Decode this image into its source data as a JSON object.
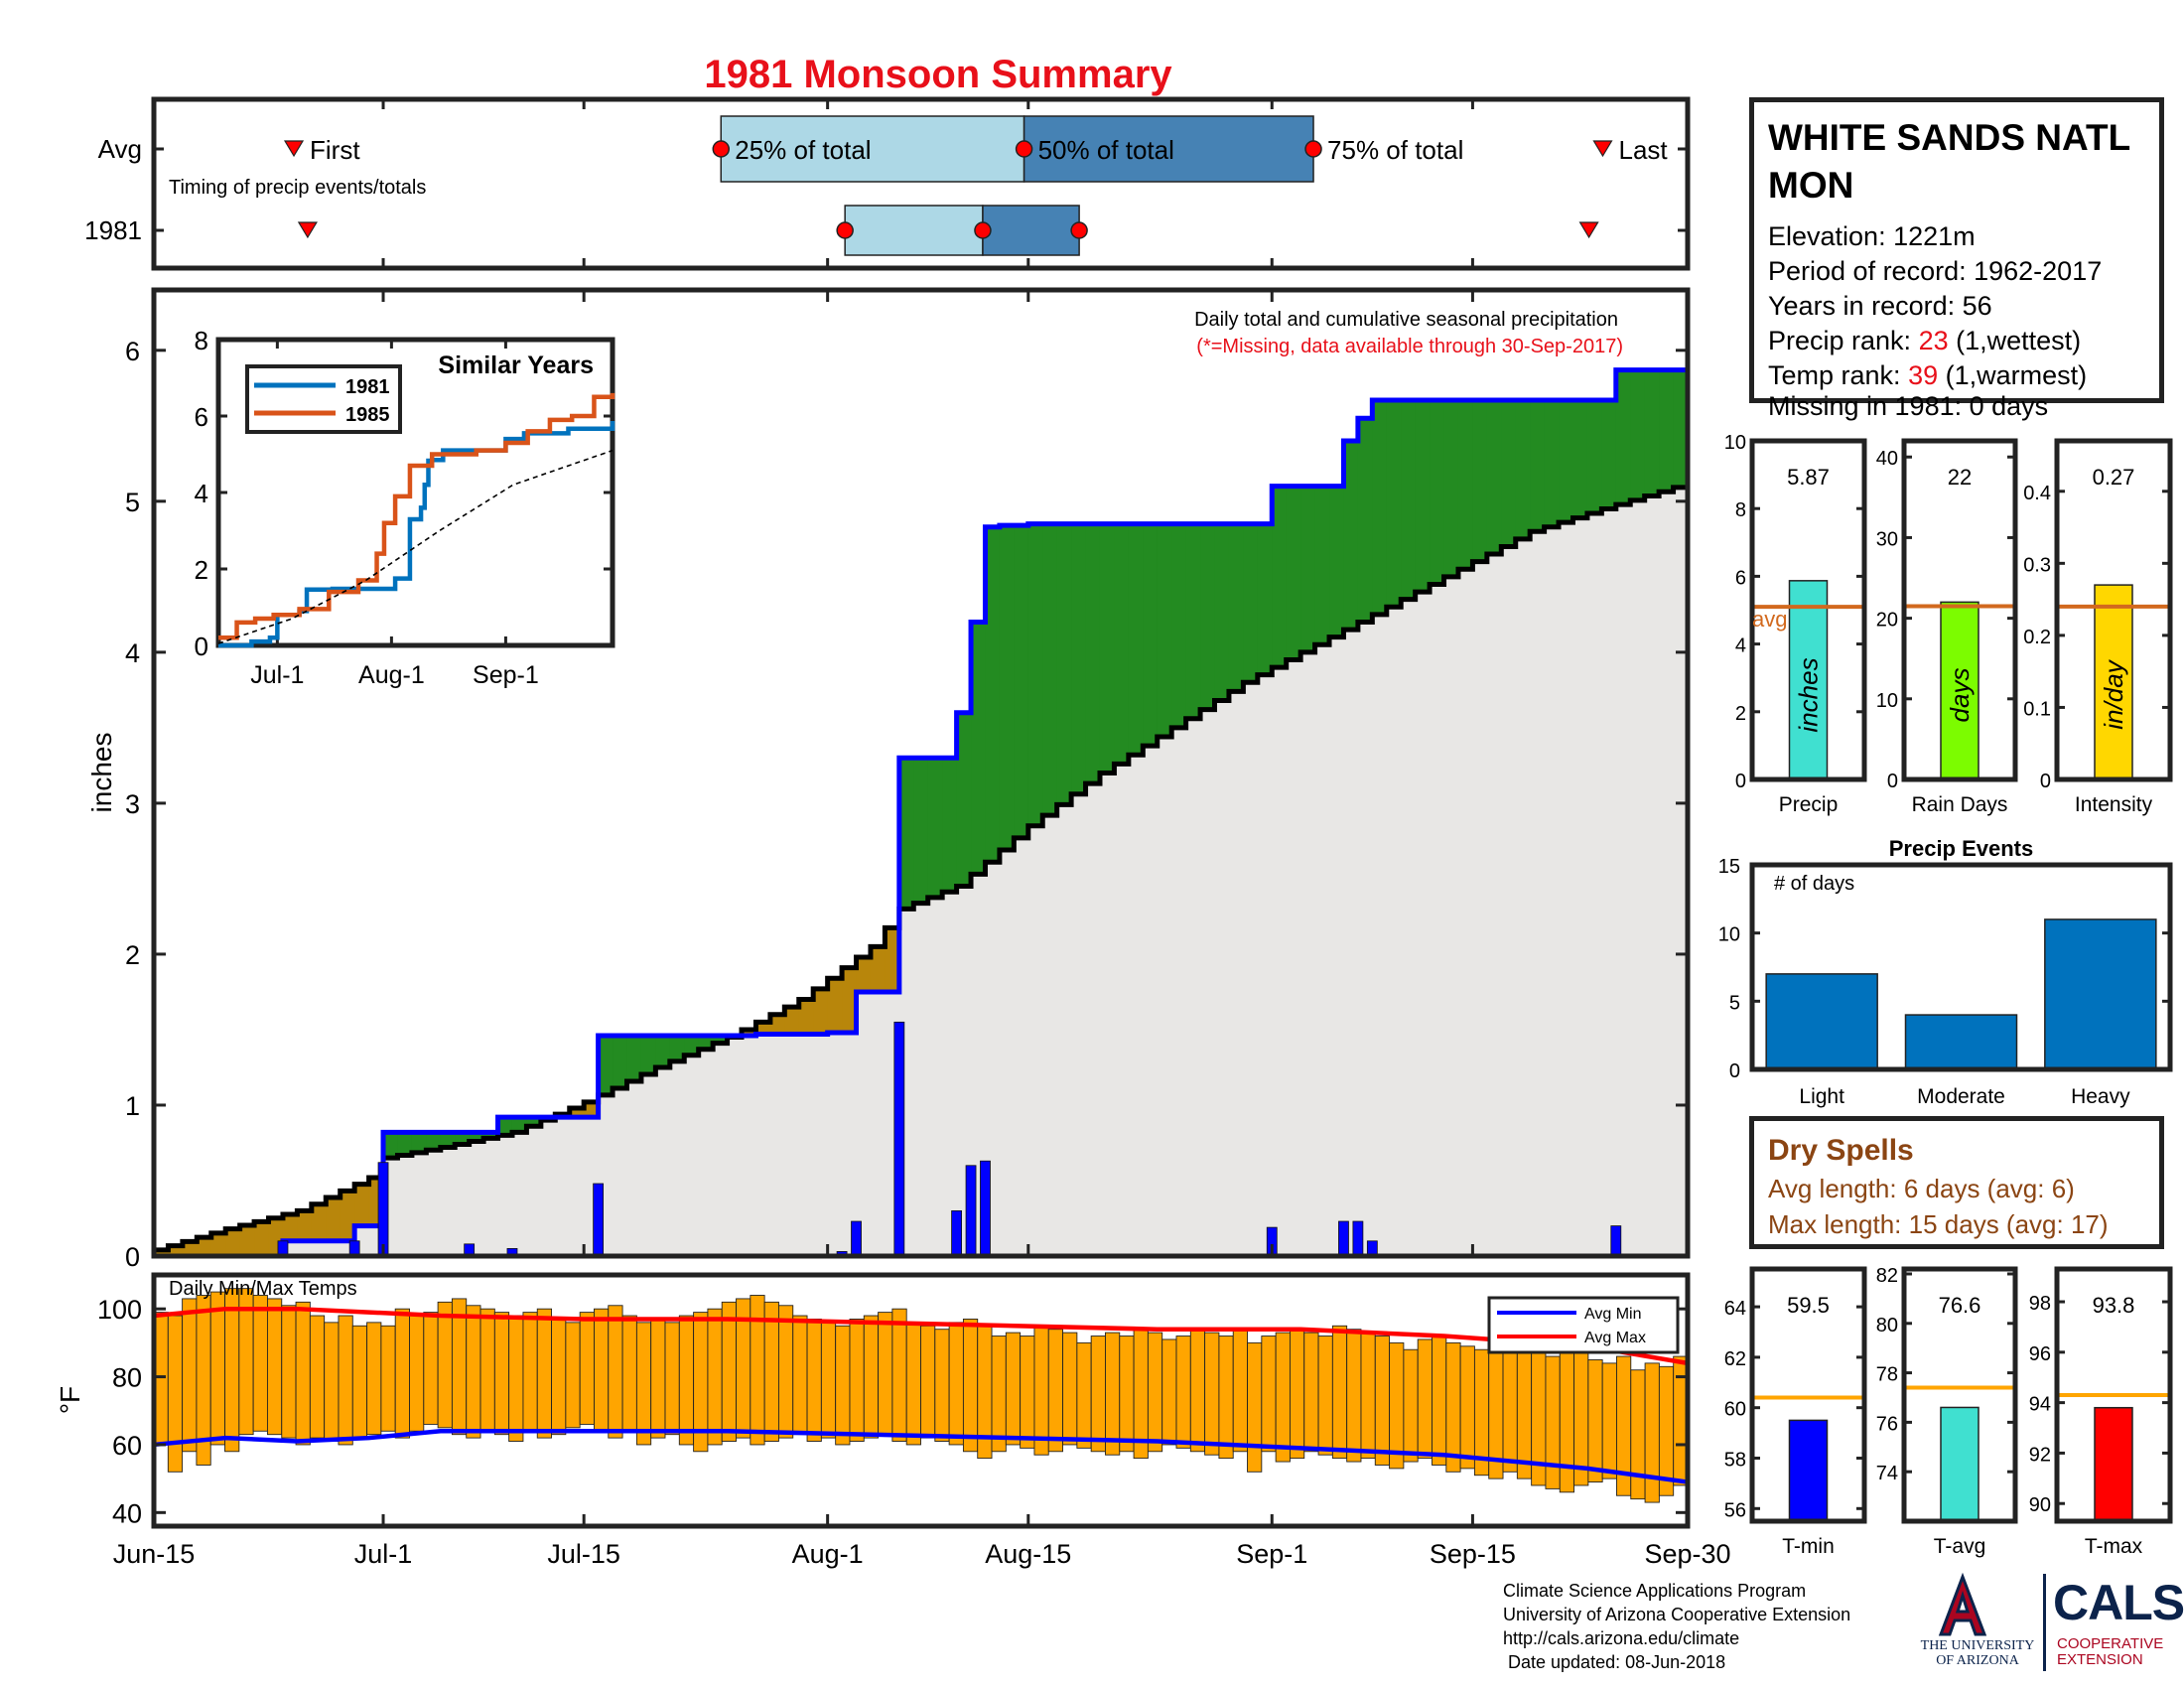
{
  "title": "1981 Monsoon Summary",
  "station": {
    "name": "WHITE SANDS NATL MON",
    "elevation_label": "Elevation: 1221m",
    "period_label": "Period of record: 1962-2017",
    "years_label": "Years in record: 56",
    "precip_rank_prefix": "Precip rank: ",
    "precip_rank": "23",
    "precip_rank_suffix": " (1,wettest)",
    "temp_rank_prefix": "Temp rank: ",
    "temp_rank": "39",
    "temp_rank_suffix": " (1,warmest)",
    "missing_label": "Missing in 1981: 0 days"
  },
  "timing": {
    "rows": [
      "Avg",
      "1981"
    ],
    "subtitle": "Timing of precip events/totals",
    "first_label": "First",
    "last_label": "Last",
    "p25_label": "25% of total",
    "p50_label": "50% of total",
    "p75_label": "75% of total",
    "avg": {
      "first": "2017-06-23",
      "p25": "2017-07-24",
      "p50": "2017-08-15",
      "p75": "2017-09-05",
      "last": "2017-09-26"
    },
    "year": {
      "first": "2017-06-24",
      "p25": "2017-08-02",
      "p50": "2017-08-12",
      "p75": "2017-08-19",
      "last": "2017-09-25"
    }
  },
  "main": {
    "ylabel": "inches",
    "note1": "Daily total and cumulative seasonal precipitation",
    "note2": "(*=Missing, data available through 30-Sep-2017)"
  },
  "inset": {
    "title": "Similar Years",
    "legend": [
      "1981",
      "1985"
    ]
  },
  "temps": {
    "label": "Daily Min/Max Temps",
    "ylabel": "°F",
    "legend": [
      "Avg Min",
      "Avg Max"
    ]
  },
  "bars": {
    "precip": {
      "value": "5.87",
      "unit": "inches",
      "xlabel": "Precip",
      "avg_label": "avg"
    },
    "raindays": {
      "value": "22",
      "unit": "days",
      "xlabel": "Rain Days"
    },
    "intensity": {
      "value": "0.27",
      "unit": "in/day",
      "xlabel": "Intensity"
    },
    "tmin": {
      "value": "59.5",
      "xlabel": "T-min"
    },
    "tavg": {
      "value": "76.6",
      "xlabel": "T-avg"
    },
    "tmax": {
      "value": "93.8",
      "xlabel": "T-max"
    }
  },
  "events": {
    "title": "Precip Events",
    "ylabel": "# of days"
  },
  "dry_spells": {
    "title": "Dry Spells",
    "avg_length": "Avg length: 6 days (avg: 6)",
    "max_length": "Max length: 15 days (avg: 17)"
  },
  "credits": {
    "line1": "Climate Science Applications Program",
    "line2": "University of Arizona Cooperative Extension",
    "line3": "http://cals.arizona.edu/climate",
    "line4": " Date updated: 08-Jun-2018",
    "ua_text1": "THE UNIVERSITY",
    "ua_text2": "OF ARIZONA",
    "cals": "CALS",
    "cals_sub1": "COOPERATIVE",
    "cals_sub2": "EXTENSION"
  },
  "colors": {
    "title": "#e8101a",
    "avg_fill": "#e8e7e5",
    "above_fill": "#238b21",
    "below_fill": "#b8860b",
    "cum_line": "#0000ff",
    "daily_bar": "#0000ff",
    "temp_bar": "#ffa500",
    "avg_min": "#0000ff",
    "avg_max": "#ff0000",
    "timing_light": "#add8e6",
    "timing_dark": "#4682b4",
    "avg_ref": "#d2691e",
    "precip_bar": "#40e0d0",
    "raindays_bar": "#7cfc00",
    "intensity_bar": "#ffd700",
    "events_bar": "#0072bd",
    "tmin_bar": "#0000ff",
    "tavg_bar": "#40e0d0",
    "tmax_bar": "#ff0000",
    "temp_ref": "#ffa500",
    "inset_1981": "#0072bd",
    "inset_1985": "#d95319"
  },
  "chart_data": [
    {
      "id": "timing",
      "type": "bar",
      "note": "Timing of precip events/totals; dates within 2017 season axis",
      "rows": [
        "Avg",
        "1981"
      ],
      "series": [
        {
          "name": "Avg",
          "first": "2017-06-23",
          "p25": "2017-07-24",
          "p50": "2017-08-15",
          "p75": "2017-09-05",
          "last": "2017-09-26"
        },
        {
          "name": "1981",
          "first": "2017-06-24",
          "p25": "2017-08-02",
          "p50": "2017-08-12",
          "p75": "2017-08-19",
          "last": "2017-09-25"
        }
      ]
    },
    {
      "id": "cumulative",
      "type": "area",
      "xlabel": "",
      "ylabel": "inches",
      "xlim": [
        "2017-06-15",
        "2017-09-30"
      ],
      "ylim": [
        0,
        6.4
      ],
      "yticks": [
        0,
        1,
        2,
        3,
        4,
        5,
        6
      ],
      "xticks": [
        {
          "date": "2017-06-15",
          "label": "Jun-15"
        },
        {
          "date": "2017-07-01",
          "label": "Jul-1"
        },
        {
          "date": "2017-07-15",
          "label": "Jul-15"
        },
        {
          "date": "2017-08-01",
          "label": "Aug-1"
        },
        {
          "date": "2017-08-15",
          "label": "Aug-15"
        },
        {
          "date": "2017-09-01",
          "label": "Sep-1"
        },
        {
          "date": "2017-09-15",
          "label": "Sep-15"
        },
        {
          "date": "2017-09-30",
          "label": "Sep-30"
        }
      ],
      "avg_cumulative": {
        "dates": [
          "2017-06-15",
          "2017-06-20",
          "2017-06-25",
          "2017-06-30",
          "2017-07-01",
          "2017-07-05",
          "2017-07-10",
          "2017-07-15",
          "2017-07-20",
          "2017-07-25",
          "2017-07-30",
          "2017-08-04",
          "2017-08-06",
          "2017-08-10",
          "2017-08-15",
          "2017-08-20",
          "2017-08-25",
          "2017-08-30",
          "2017-09-04",
          "2017-09-09",
          "2017-09-14",
          "2017-09-19",
          "2017-09-24",
          "2017-09-30"
        ],
        "values": [
          0.04,
          0.18,
          0.3,
          0.52,
          0.65,
          0.72,
          0.82,
          1.02,
          1.25,
          1.45,
          1.7,
          2.05,
          2.3,
          2.45,
          2.85,
          3.2,
          3.5,
          3.8,
          4.05,
          4.3,
          4.55,
          4.8,
          4.95,
          5.12
        ]
      },
      "cumulative_1981": {
        "dates": [
          "2017-06-15",
          "2017-06-24",
          "2017-06-29",
          "2017-07-01",
          "2017-07-07",
          "2017-07-09",
          "2017-07-16",
          "2017-07-27",
          "2017-08-01",
          "2017-08-03",
          "2017-08-06",
          "2017-08-10",
          "2017-08-11",
          "2017-08-12",
          "2017-08-13",
          "2017-08-15",
          "2017-09-01",
          "2017-09-06",
          "2017-09-07",
          "2017-09-08",
          "2017-09-25",
          "2017-09-30"
        ],
        "values": [
          0.0,
          0.1,
          0.2,
          0.82,
          0.82,
          0.92,
          1.46,
          1.47,
          1.48,
          1.75,
          3.3,
          3.6,
          4.2,
          4.83,
          4.84,
          4.85,
          5.1,
          5.4,
          5.55,
          5.67,
          5.87,
          5.87
        ]
      },
      "daily_precip": {
        "dates": [
          "2017-06-24",
          "2017-06-29",
          "2017-07-01",
          "2017-07-07",
          "2017-07-10",
          "2017-07-16",
          "2017-08-02",
          "2017-08-03",
          "2017-08-06",
          "2017-08-10",
          "2017-08-11",
          "2017-08-12",
          "2017-09-01",
          "2017-09-06",
          "2017-09-07",
          "2017-09-08",
          "2017-09-25"
        ],
        "values": [
          0.1,
          0.1,
          0.62,
          0.08,
          0.05,
          0.48,
          0.03,
          0.23,
          1.55,
          0.3,
          0.6,
          0.63,
          0.19,
          0.23,
          0.23,
          0.1,
          0.2
        ]
      }
    },
    {
      "id": "similar_years",
      "type": "line",
      "title": "Similar Years",
      "xticks": [
        "Jul-1",
        "Aug-1",
        "Sep-1"
      ],
      "ylim": [
        0,
        8
      ],
      "yticks": [
        0,
        2,
        4,
        6,
        8
      ],
      "series": [
        {
          "name": "1981",
          "days": [
            0,
            9,
            14,
            16,
            22,
            24,
            31,
            48,
            52,
            55,
            56,
            57,
            58,
            60,
            61,
            78,
            83,
            95,
            107
          ],
          "values": [
            0.0,
            0.1,
            0.2,
            0.8,
            0.9,
            1.46,
            1.48,
            1.75,
            3.3,
            3.6,
            4.2,
            4.83,
            4.85,
            4.85,
            5.1,
            5.4,
            5.55,
            5.67,
            5.87
          ]
        },
        {
          "name": "1985",
          "days": [
            0,
            5,
            10,
            15,
            22,
            30,
            38,
            43,
            45,
            48,
            52,
            58,
            70,
            78,
            84,
            90,
            96,
            102,
            107
          ],
          "values": [
            0.2,
            0.6,
            0.7,
            0.8,
            0.95,
            1.4,
            1.7,
            2.4,
            3.2,
            3.9,
            4.7,
            5.0,
            5.1,
            5.3,
            5.6,
            5.9,
            6.0,
            6.5,
            6.6
          ]
        },
        {
          "name": "average",
          "days": [
            0,
            20,
            40,
            60,
            80,
            107
          ],
          "values": [
            0.05,
            0.7,
            1.7,
            3.0,
            4.2,
            5.1
          ]
        }
      ]
    },
    {
      "id": "temps",
      "type": "bar",
      "ylabel": "°F",
      "ylim": [
        36,
        110
      ],
      "yticks": [
        40,
        60,
        80,
        100
      ],
      "min_temps": [
        60,
        52,
        58,
        54,
        60,
        58,
        63,
        64,
        63,
        62,
        60,
        62,
        61,
        60,
        62,
        63,
        64,
        62,
        64,
        66,
        65,
        63,
        62,
        64,
        63,
        61,
        64,
        62,
        63,
        65,
        66,
        64,
        62,
        64,
        60,
        62,
        63,
        60,
        58,
        60,
        61,
        62,
        60,
        61,
        62,
        63,
        61,
        62,
        60,
        61,
        62,
        63,
        61,
        60,
        62,
        61,
        60,
        58,
        56,
        58,
        60,
        59,
        57,
        58,
        60,
        59,
        58,
        57,
        58,
        56,
        58,
        60,
        59,
        58,
        57,
        56,
        58,
        52,
        58,
        55,
        56,
        58,
        57,
        56,
        55,
        56,
        54,
        53,
        55,
        56,
        54,
        52,
        53,
        51,
        50,
        52,
        50,
        48,
        47,
        46,
        48,
        49,
        50,
        45,
        44,
        43,
        45,
        48
      ],
      "max_temps": [
        99,
        98,
        103,
        104,
        105,
        106,
        106,
        104,
        103,
        101,
        102,
        98,
        96,
        98,
        95,
        96,
        95,
        100,
        98,
        99,
        102,
        103,
        101,
        100,
        99,
        98,
        99,
        100,
        97,
        96,
        99,
        100,
        101,
        98,
        96,
        97,
        96,
        98,
        99,
        100,
        102,
        103,
        104,
        102,
        101,
        98,
        97,
        96,
        95,
        97,
        98,
        99,
        100,
        96,
        95,
        94,
        96,
        97,
        95,
        92,
        93,
        92,
        95,
        94,
        93,
        90,
        92,
        93,
        92,
        94,
        93,
        91,
        92,
        94,
        93,
        92,
        94,
        90,
        92,
        93,
        94,
        93,
        92,
        95,
        94,
        93,
        92,
        90,
        88,
        91,
        92,
        90,
        89,
        88,
        90,
        89,
        88,
        87,
        86,
        88,
        87,
        85,
        84,
        86,
        82,
        84,
        83,
        86
      ],
      "avg_min": {
        "days": [
          0,
          5,
          10,
          15,
          20,
          30,
          40,
          50,
          60,
          70,
          80,
          90,
          100,
          107
        ],
        "values": [
          60,
          62,
          61,
          62,
          64,
          64,
          64,
          63,
          62,
          61,
          59,
          57,
          53,
          49
        ]
      },
      "avg_max": {
        "days": [
          0,
          5,
          10,
          15,
          20,
          30,
          40,
          50,
          60,
          70,
          80,
          90,
          100,
          107
        ],
        "values": [
          98,
          100,
          100,
          99,
          98,
          97,
          97,
          96,
          95,
          94,
          94,
          92,
          89,
          84
        ]
      }
    },
    {
      "id": "precip_total",
      "type": "bar",
      "categories": [
        "Precip"
      ],
      "values": [
        5.87
      ],
      "avg": 5.1,
      "ylim": [
        0,
        10
      ],
      "yticks": [
        0,
        2,
        4,
        6,
        8,
        10
      ],
      "unit": "inches"
    },
    {
      "id": "rain_days",
      "type": "bar",
      "categories": [
        "Rain Days"
      ],
      "values": [
        22
      ],
      "avg": 21.5,
      "ylim": [
        0,
        42
      ],
      "yticks": [
        0,
        10,
        20,
        30,
        40
      ],
      "unit": "days"
    },
    {
      "id": "intensity",
      "type": "bar",
      "categories": [
        "Intensity"
      ],
      "values": [
        0.27
      ],
      "avg": 0.24,
      "ylim": [
        0,
        0.47
      ],
      "yticks": [
        0,
        0.1,
        0.2,
        0.3,
        0.4
      ],
      "unit": "in/day"
    },
    {
      "id": "precip_events",
      "type": "bar",
      "title": "Precip Events",
      "ylabel": "# of days",
      "categories": [
        "Light",
        "Moderate",
        "Heavy"
      ],
      "values": [
        7,
        4,
        11
      ],
      "ylim": [
        0,
        15
      ],
      "yticks": [
        0,
        5,
        10,
        15
      ]
    },
    {
      "id": "tmin",
      "type": "bar",
      "categories": [
        "T-min"
      ],
      "values": [
        59.5
      ],
      "avg": 60.4,
      "ylim": [
        55.5,
        65.5
      ],
      "yticks": [
        56,
        58,
        60,
        62,
        64
      ]
    },
    {
      "id": "tavg",
      "type": "bar",
      "categories": [
        "T-avg"
      ],
      "values": [
        76.6
      ],
      "avg": 77.4,
      "ylim": [
        72.0,
        82.2
      ],
      "yticks": [
        74,
        76,
        78,
        80,
        82
      ]
    },
    {
      "id": "tmax",
      "type": "bar",
      "categories": [
        "T-max"
      ],
      "values": [
        93.8
      ],
      "avg": 94.3,
      "ylim": [
        89.3,
        99.3
      ],
      "yticks": [
        90,
        92,
        94,
        96,
        98
      ]
    }
  ]
}
